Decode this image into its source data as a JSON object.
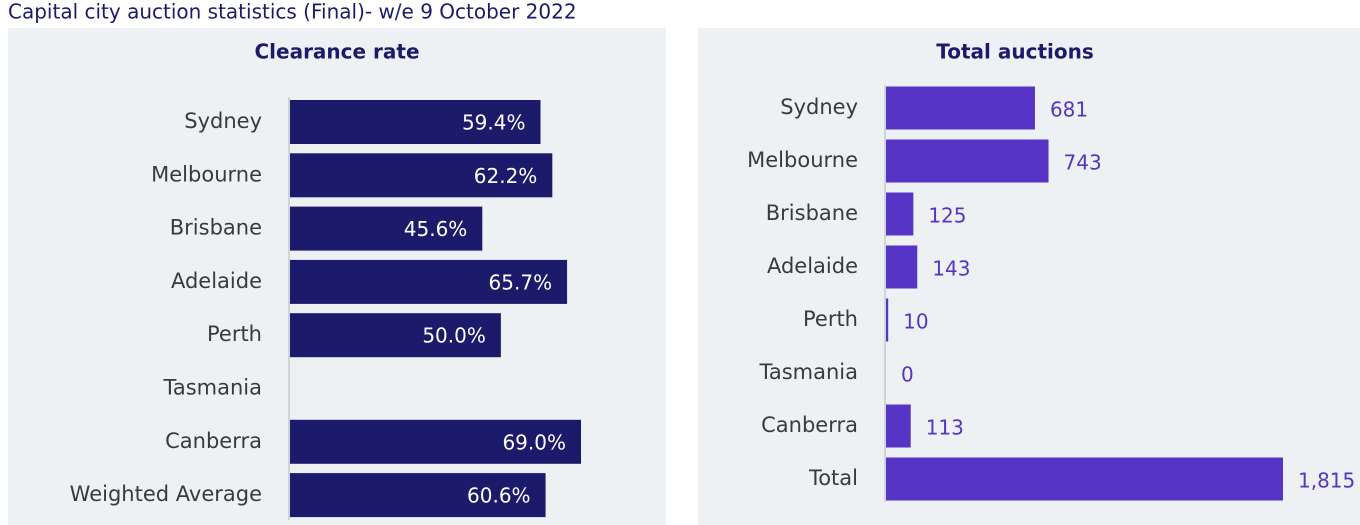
{
  "title": "Capital city auction statistics (Final)- w/e 9 October 2022",
  "chart_data": [
    {
      "type": "bar",
      "orientation": "horizontal",
      "title": "Clearance rate",
      "color": "#1c1a6b",
      "categories": [
        "Sydney",
        "Melbourne",
        "Brisbane",
        "Adelaide",
        "Perth",
        "Tasmania",
        "Canberra",
        "Weighted Average"
      ],
      "values": [
        59.4,
        62.2,
        45.6,
        65.7,
        50.0,
        null,
        69.0,
        60.6
      ],
      "value_labels": [
        "59.4%",
        "62.2%",
        "45.6%",
        "65.7%",
        "50.0%",
        null,
        "69.0%",
        "60.6%"
      ]
    },
    {
      "type": "bar",
      "orientation": "horizontal",
      "title": "Total auctions",
      "color": "#5534c6",
      "categories": [
        "Sydney",
        "Melbourne",
        "Brisbane",
        "Adelaide",
        "Perth",
        "Tasmania",
        "Canberra",
        "Total"
      ],
      "values": [
        681,
        743,
        125,
        143,
        10,
        0,
        113,
        1815
      ],
      "value_labels": [
        "681",
        "743",
        "125",
        "143",
        "10",
        "0",
        "113",
        "1,815"
      ]
    }
  ]
}
